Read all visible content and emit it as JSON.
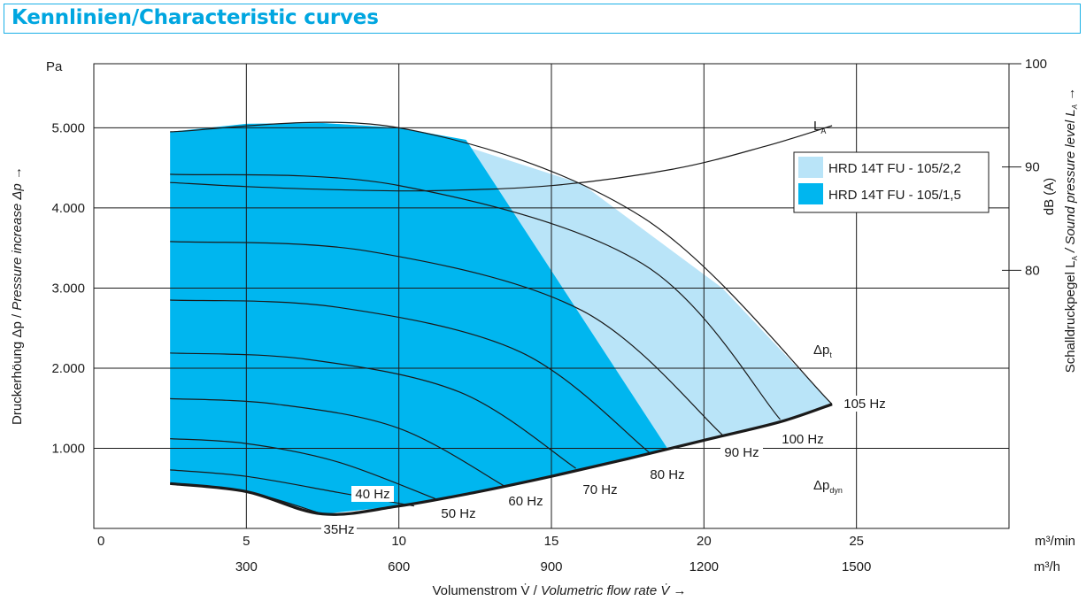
{
  "header": {
    "title": "Kennlinien/Characteristic curves"
  },
  "colors": {
    "dark_fill": "#00b6ef",
    "light_fill": "#b9e4f8",
    "header_accent": "#00a6e0",
    "grid": "#1a1a1a"
  },
  "chart_data": {
    "type": "line",
    "x_axis": {
      "unit_primary": "m³/min",
      "unit_secondary": "m³/h",
      "range": [
        0,
        30
      ],
      "ticks_primary": [
        "0",
        "5",
        "10",
        "15",
        "20",
        "25"
      ],
      "ticks_primary_values": [
        0,
        5,
        10,
        15,
        20,
        25
      ],
      "ticks_secondary": [
        "300",
        "600",
        "900",
        "1200",
        "1500"
      ],
      "ticks_secondary_values": [
        5,
        10,
        15,
        20,
        25
      ],
      "label_de": "Volumenstrom V̇ / ",
      "label_en": "Volumetric flow rate V̇",
      "arrow": "→"
    },
    "y_axis": {
      "unit": "Pa",
      "range": [
        0,
        5800
      ],
      "ticks": [
        "1.000",
        "2.000",
        "3.000",
        "4.000",
        "5.000"
      ],
      "tick_values": [
        1000,
        2000,
        3000,
        4000,
        5000
      ],
      "label_de": "Druckerhöung Δp / ",
      "label_en": "Pressure increase Δp",
      "arrow": "→"
    },
    "y2_axis": {
      "unit": "dB (A)",
      "range": [
        55,
        100
      ],
      "ticks": [
        "100",
        "90",
        "80"
      ],
      "tick_values": [
        100,
        90,
        80
      ],
      "label_de": "Schalldruckpegel L",
      "label_de_sub": "A",
      "label_en": " / Sound pressure level L",
      "label_en_sub": "A",
      "arrow": "→"
    },
    "legend": [
      {
        "label": "HRD 14T FU - 105/2,2",
        "color": "#b9e4f8"
      },
      {
        "label": "HRD 14T FU - 105/1,5",
        "color": "#00b6ef"
      }
    ],
    "annotations": {
      "la_label": "L",
      "la_sub": "A",
      "dpt_label": "Δp",
      "dpt_sub": "t",
      "dpdyn_label": "Δp",
      "dpdyn_sub": "dyn"
    },
    "sound_level_curve": {
      "x": [
        2.5,
        5,
        8,
        11,
        15,
        19,
        22,
        24.2
      ],
      "y": [
        88.5,
        88.1,
        87.8,
        87.7,
        88.2,
        89.8,
        92,
        94
      ]
    },
    "dynamic_pressure_curve": {
      "x": [
        2.5,
        5,
        7.5,
        10,
        12.5,
        15,
        17.5,
        20,
        22.5,
        24.2
      ],
      "y": [
        560,
        460,
        180,
        280,
        450,
        650,
        870,
        1100,
        1330,
        1550
      ]
    },
    "speed_curves": [
      {
        "name": "35Hz",
        "x": [
          2.5,
          5,
          7.5
        ],
        "y": [
          560,
          460,
          180
        ]
      },
      {
        "name": "40 Hz",
        "x": [
          2.5,
          5,
          8,
          10.5
        ],
        "y": [
          730,
          650,
          450,
          280
        ]
      },
      {
        "name": "50 Hz",
        "x": [
          2.5,
          5,
          8,
          11.2
        ],
        "y": [
          1120,
          1060,
          830,
          370
        ]
      },
      {
        "name": "60 Hz",
        "x": [
          2.5,
          6,
          10,
          13.5
        ],
        "y": [
          1620,
          1550,
          1250,
          520
        ]
      },
      {
        "name": "70 Hz",
        "x": [
          2.5,
          7,
          12,
          15.8
        ],
        "y": [
          2190,
          2110,
          1700,
          750
        ]
      },
      {
        "name": "80 Hz",
        "x": [
          2.5,
          8,
          14,
          18.2
        ],
        "y": [
          2850,
          2760,
          2200,
          950
        ]
      },
      {
        "name": "90 Hz",
        "x": [
          2.5,
          9,
          16,
          20.6
        ],
        "y": [
          3580,
          3460,
          2720,
          1170
        ]
      },
      {
        "name": "100 Hz",
        "x": [
          2.5,
          10,
          18,
          22.5
        ],
        "y": [
          4420,
          4280,
          3300,
          1360
        ]
      },
      {
        "name": "105 Hz",
        "x": [
          2.5,
          10,
          18,
          24.2
        ],
        "y": [
          4950,
          5000,
          3880,
          1550
        ]
      }
    ],
    "speed_labels": [
      "35Hz",
      "40 Hz",
      "50 Hz",
      "60 Hz",
      "70 Hz",
      "80 Hz",
      "90 Hz",
      "100 Hz",
      "105 Hz"
    ],
    "regions": {
      "light": {
        "x": [
          2.5,
          5,
          7.5,
          10,
          12.5,
          15,
          17.5,
          20,
          22.5,
          24.2,
          20.6,
          16,
          11.2,
          10,
          7.5,
          5,
          2.5
        ],
        "y": [
          560,
          460,
          180,
          280,
          450,
          650,
          870,
          1100,
          1330,
          1550,
          3000,
          4300,
          4890,
          5000,
          5060,
          5050,
          4950
        ]
      },
      "dark": {
        "x": [
          2.5,
          5,
          7.5,
          10,
          12.5,
          15,
          17.5,
          18.8,
          12.2,
          10,
          7.5,
          5,
          2.5
        ],
        "y": [
          560,
          460,
          180,
          280,
          450,
          650,
          870,
          1000,
          4850,
          5000,
          5060,
          5050,
          4950
        ]
      }
    }
  }
}
